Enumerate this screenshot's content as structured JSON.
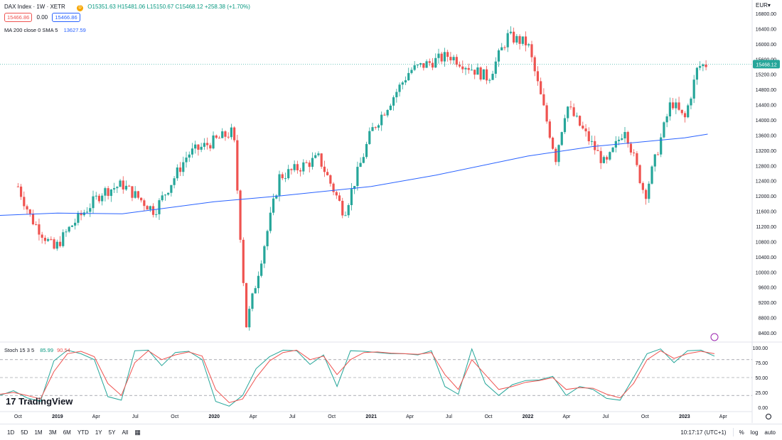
{
  "header": {
    "symbol": "DAX Index · 1W · XETR",
    "badge": "D",
    "ohlc": "O15351.63 H15481.06 L15150.67 C15468.12 +258.38 (+1.70%)",
    "bid": "15466.86",
    "spread": "0.00",
    "ask": "15466.86",
    "ma_label": "MA 200 close 0 SMA 5",
    "ma_value": "13627.59"
  },
  "axis": {
    "currency": "EUR▾",
    "price_label": "15468.12"
  },
  "stoch": {
    "label": "Stoch 15 3 5",
    "k": "85.99",
    "d": "90.54"
  },
  "logo": "TradingView",
  "bottom": {
    "ranges": [
      "1D",
      "5D",
      "1M",
      "3M",
      "6M",
      "YTD",
      "1Y",
      "5Y",
      "All"
    ],
    "time": "10:17:17 (UTC+1)",
    "pct": "%",
    "log": "log",
    "auto": "auto"
  },
  "colors": {
    "up": "#26a69a",
    "down": "#ef5350",
    "ma": "#2962ff",
    "k": "#26a69a",
    "d": "#ef5350"
  },
  "chart_data": [
    {
      "type": "candlestick",
      "title": "DAX Index · 1W · XETR",
      "ylim": [
        8000,
        17000
      ],
      "yticks": [
        8400,
        8800,
        9200,
        9600,
        10000,
        10400,
        10800,
        11200,
        11600,
        12000,
        12400,
        12800,
        13200,
        13600,
        14000,
        14400,
        14800,
        15200,
        15600,
        16000,
        16400,
        16800
      ],
      "x_tick_labels": [
        "Oct",
        "2019",
        "Apr",
        "Jul",
        "Oct",
        "2020",
        "Apr",
        "Jul",
        "Oct",
        "2021",
        "Apr",
        "Jul",
        "Oct",
        "2022",
        "Apr",
        "Jul",
        "Oct",
        "2023",
        "Apr"
      ],
      "key_closes": [
        {
          "x": "2018-10-01",
          "y": 12250
        },
        {
          "x": "2018-11-01",
          "y": 11400
        },
        {
          "x": "2018-12-24",
          "y": 10600
        },
        {
          "x": "2019-02-01",
          "y": 11200
        },
        {
          "x": "2019-04-15",
          "y": 12100
        },
        {
          "x": "2019-06-01",
          "y": 12300
        },
        {
          "x": "2019-08-15",
          "y": 11600
        },
        {
          "x": "2019-11-01",
          "y": 13100
        },
        {
          "x": "2020-02-15",
          "y": 13700
        },
        {
          "x": "2020-03-16",
          "y": 8600
        },
        {
          "x": "2020-06-01",
          "y": 12500
        },
        {
          "x": "2020-09-01",
          "y": 13000
        },
        {
          "x": "2020-10-30",
          "y": 11550
        },
        {
          "x": "2021-01-01",
          "y": 13700
        },
        {
          "x": "2021-04-01",
          "y": 15300
        },
        {
          "x": "2021-07-01",
          "y": 15700
        },
        {
          "x": "2021-10-01",
          "y": 15100
        },
        {
          "x": "2021-11-15",
          "y": 16200
        },
        {
          "x": "2022-01-01",
          "y": 16000
        },
        {
          "x": "2022-03-07",
          "y": 13000
        },
        {
          "x": "2022-04-01",
          "y": 14400
        },
        {
          "x": "2022-07-01",
          "y": 12800
        },
        {
          "x": "2022-08-15",
          "y": 13800
        },
        {
          "x": "2022-10-01",
          "y": 12000
        },
        {
          "x": "2022-12-01",
          "y": 14500
        },
        {
          "x": "2023-01-01",
          "y": 14000
        },
        {
          "x": "2023-02-01",
          "y": 15400
        },
        {
          "x": "2023-02-24",
          "y": 15468.12
        }
      ],
      "ma_series": {
        "name": "MA 200 close 0 SMA 5",
        "points": [
          {
            "x": "2018-08-01",
            "y": 11480
          },
          {
            "x": "2019-01-01",
            "y": 11550
          },
          {
            "x": "2019-06-01",
            "y": 11530
          },
          {
            "x": "2020-01-01",
            "y": 11850
          },
          {
            "x": "2020-06-01",
            "y": 12000
          },
          {
            "x": "2021-01-01",
            "y": 12250
          },
          {
            "x": "2021-06-01",
            "y": 12550
          },
          {
            "x": "2022-01-01",
            "y": 13050
          },
          {
            "x": "2022-06-01",
            "y": 13300
          },
          {
            "x": "2023-01-01",
            "y": 13530
          },
          {
            "x": "2023-02-24",
            "y": 13627.59
          }
        ]
      },
      "last_price": 15468.12
    },
    {
      "type": "line",
      "title": "Stoch 15 3 5",
      "ylim": [
        0,
        100
      ],
      "yticks": [
        0,
        25,
        50,
        75,
        100
      ],
      "levels": [
        80,
        50,
        20
      ],
      "series": [
        {
          "name": "%K",
          "values": [
            20,
            28,
            16,
            10,
            78,
            96,
            90,
            80,
            18,
            12,
            95,
            96,
            70,
            92,
            94,
            80,
            10,
            2,
            20,
            65,
            85,
            96,
            95,
            72,
            88,
            35,
            95,
            94,
            92,
            90,
            90,
            88,
            95,
            35,
            22,
            98,
            40,
            20,
            38,
            45,
            46,
            52,
            20,
            35,
            30,
            15,
            12,
            50,
            90,
            98,
            75,
            95,
            96,
            86
          ]
        },
        {
          "name": "%D",
          "values": [
            22,
            25,
            20,
            14,
            60,
            90,
            94,
            85,
            40,
            20,
            75,
            95,
            80,
            88,
            93,
            86,
            30,
            8,
            14,
            50,
            78,
            92,
            96,
            80,
            86,
            55,
            80,
            92,
            93,
            91,
            90,
            89,
            92,
            55,
            30,
            80,
            55,
            30,
            35,
            42,
            45,
            50,
            30,
            33,
            32,
            22,
            16,
            40,
            80,
            95,
            82,
            90,
            94,
            90
          ]
        }
      ]
    }
  ]
}
